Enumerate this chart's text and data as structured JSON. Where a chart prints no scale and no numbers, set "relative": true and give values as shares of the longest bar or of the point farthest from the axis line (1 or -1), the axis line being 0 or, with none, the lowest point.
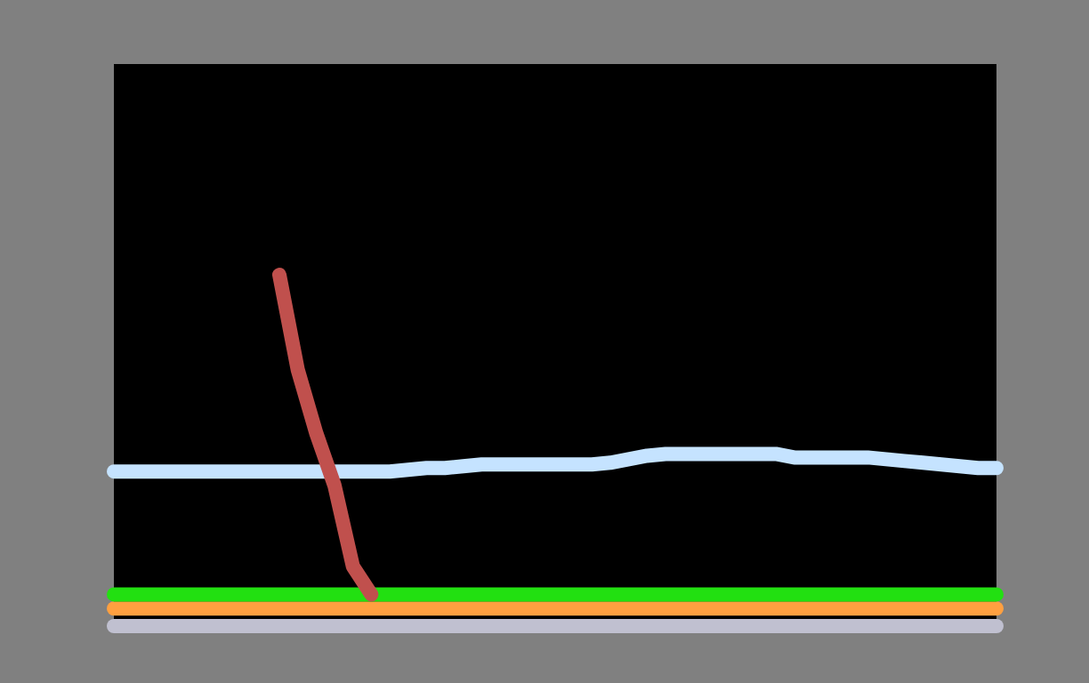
{
  "chart_data": {
    "type": "line",
    "relative": true,
    "grid": false,
    "marker": "none",
    "line_style": "solid",
    "categories": [
      null,
      null,
      null,
      null,
      null,
      null,
      null,
      null,
      null,
      null,
      null,
      null,
      null,
      null,
      null,
      null,
      null,
      null,
      null,
      null,
      null,
      null,
      null,
      null,
      null,
      null,
      null,
      null,
      null,
      null,
      null,
      null,
      null,
      null,
      null,
      null,
      null,
      null,
      null,
      null,
      null,
      null,
      null,
      null,
      null,
      null,
      null,
      null,
      null
    ],
    "series": [
      {
        "color": "#c0c0d0",
        "values": [
          0,
          0,
          0,
          0,
          0,
          0,
          0,
          0,
          0,
          0,
          0,
          0,
          0,
          0,
          0,
          0,
          0,
          0,
          0,
          0,
          0,
          0,
          0,
          0,
          0,
          0,
          0,
          0,
          0,
          0,
          0,
          0,
          0,
          0,
          0,
          0,
          0,
          0,
          0,
          0,
          0,
          0,
          0,
          0,
          0,
          0,
          0,
          0,
          0
        ]
      },
      {
        "color": "#ffa040",
        "values": [
          0.05,
          0.05,
          0.05,
          0.05,
          0.05,
          0.05,
          0.05,
          0.05,
          0.05,
          0.05,
          0.05,
          0.05,
          0.05,
          0.05,
          0.05,
          0.05,
          0.05,
          0.05,
          0.05,
          0.05,
          0.05,
          0.05,
          0.05,
          0.05,
          0.05,
          0.05,
          0.05,
          0.05,
          0.05,
          0.05,
          0.05,
          0.05,
          0.05,
          0.05,
          0.05,
          0.05,
          0.05,
          0.05,
          0.05,
          0.05,
          0.05,
          0.05,
          0.05,
          0.05,
          0.05,
          0.05,
          0.05,
          0.05,
          0.05
        ]
      },
      {
        "color": "#22e011",
        "values": [
          0.09,
          0.09,
          0.09,
          0.09,
          0.09,
          0.09,
          0.09,
          0.09,
          0.09,
          0.09,
          0.09,
          0.09,
          0.09,
          0.09,
          0.09,
          0.09,
          0.09,
          0.09,
          0.09,
          0.09,
          0.09,
          0.09,
          0.09,
          0.09,
          0.09,
          0.09,
          0.09,
          0.09,
          0.09,
          0.09,
          0.09,
          0.09,
          0.09,
          0.09,
          0.09,
          0.09,
          0.09,
          0.09,
          0.09,
          0.09,
          0.09,
          0.09,
          0.09,
          0.09,
          0.09,
          0.09,
          0.09,
          0.09,
          0.09
        ]
      },
      {
        "color": "#c5e3ff",
        "values": [
          0.44,
          0.44,
          0.44,
          0.44,
          0.44,
          0.44,
          0.44,
          0.44,
          0.44,
          0.44,
          0.44,
          0.44,
          0.44,
          0.44,
          0.44,
          0.44,
          0.445,
          0.45,
          0.45,
          0.455,
          0.46,
          0.46,
          0.46,
          0.46,
          0.46,
          0.46,
          0.46,
          0.465,
          0.475,
          0.485,
          0.49,
          0.49,
          0.49,
          0.49,
          0.49,
          0.49,
          0.49,
          0.48,
          0.48,
          0.48,
          0.48,
          0.48,
          0.475,
          0.47,
          0.465,
          0.46,
          0.455,
          0.45,
          0.45
        ]
      },
      {
        "color": "#c0504d",
        "values": [
          null,
          null,
          null,
          null,
          null,
          null,
          null,
          null,
          null,
          1,
          0.73,
          0.55,
          0.4,
          0.17,
          0.09,
          null,
          null,
          null,
          null,
          null,
          null,
          null,
          null,
          null,
          null,
          null,
          null,
          null,
          null,
          null,
          null,
          null,
          null,
          null,
          null,
          null,
          null,
          null,
          null,
          null,
          null,
          null,
          null,
          null,
          null,
          null,
          null,
          null,
          null
        ]
      }
    ]
  }
}
